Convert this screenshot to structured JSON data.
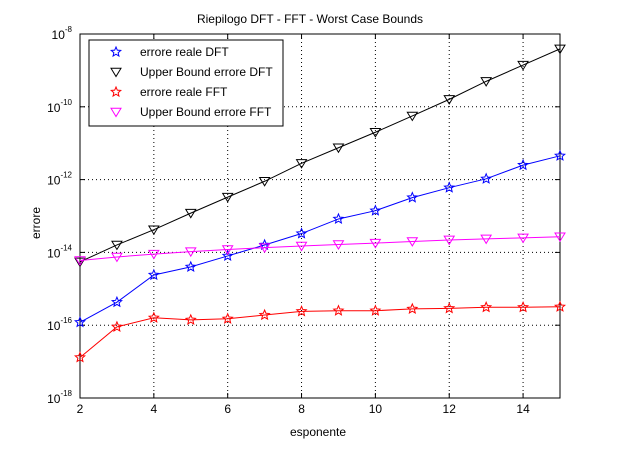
{
  "chart_data": {
    "type": "line",
    "title": "Riepilogo DFT - FFT - Worst Case Bounds",
    "xlabel": "esponente",
    "ylabel": "errore",
    "x": [
      2,
      3,
      4,
      5,
      6,
      7,
      8,
      9,
      10,
      11,
      12,
      13,
      14,
      15
    ],
    "xlim": [
      2,
      15
    ],
    "ylim": [
      1e-18,
      1e-08
    ],
    "yscale": "log",
    "grid": true,
    "legend_position": "top-left",
    "x_ticks": [
      2,
      4,
      6,
      8,
      10,
      12,
      14
    ],
    "x_tick_labels": [
      "2",
      "4",
      "6",
      "8",
      "10",
      "12",
      "14"
    ],
    "y_ticks": [
      1e-18,
      1e-16,
      1e-14,
      1e-12,
      1e-10,
      1e-08
    ],
    "y_tick_labels": [
      {
        "base": "10",
        "exp": "-18"
      },
      {
        "base": "10",
        "exp": "-16"
      },
      {
        "base": "10",
        "exp": "-14"
      },
      {
        "base": "10",
        "exp": "-12"
      },
      {
        "base": "10",
        "exp": "-10"
      },
      {
        "base": "10",
        "exp": "-8"
      }
    ],
    "series": [
      {
        "name": "errore reale DFT",
        "color": "#0000ff",
        "marker": "star",
        "values": [
          1.2e-16,
          4.3e-16,
          2.4e-15,
          4e-15,
          8e-15,
          1.6e-14,
          3.3e-14,
          8.3e-14,
          1.4e-13,
          3.2e-13,
          6e-13,
          1.05e-12,
          2.5e-12,
          4.5e-12
        ]
      },
      {
        "name": "Upper Bound errore DFT",
        "color": "#000000",
        "marker": "triangle-down",
        "values": [
          5.5e-15,
          1.6e-14,
          4.2e-14,
          1.2e-13,
          3.3e-13,
          9e-13,
          2.8e-12,
          7.5e-12,
          2e-11,
          5.6e-11,
          1.6e-10,
          5e-10,
          1.4e-09,
          3.9e-09
        ]
      },
      {
        "name": "errore reale FFT",
        "color": "#ff0000",
        "marker": "star",
        "values": [
          1.3e-17,
          9e-17,
          1.6e-16,
          1.4e-16,
          1.5e-16,
          1.9e-16,
          2.4e-16,
          2.5e-16,
          2.5e-16,
          2.8e-16,
          2.9e-16,
          3.1e-16,
          3.1e-16,
          3.2e-16
        ]
      },
      {
        "name": "Upper Bound errore FFT",
        "color": "#ff00ff",
        "marker": "triangle-down",
        "values": [
          6e-15,
          7.5e-15,
          9e-15,
          1.05e-14,
          1.2e-14,
          1.35e-14,
          1.5e-14,
          1.65e-14,
          1.8e-14,
          2e-14,
          2.2e-14,
          2.35e-14,
          2.5e-14,
          2.7e-14
        ]
      }
    ]
  }
}
